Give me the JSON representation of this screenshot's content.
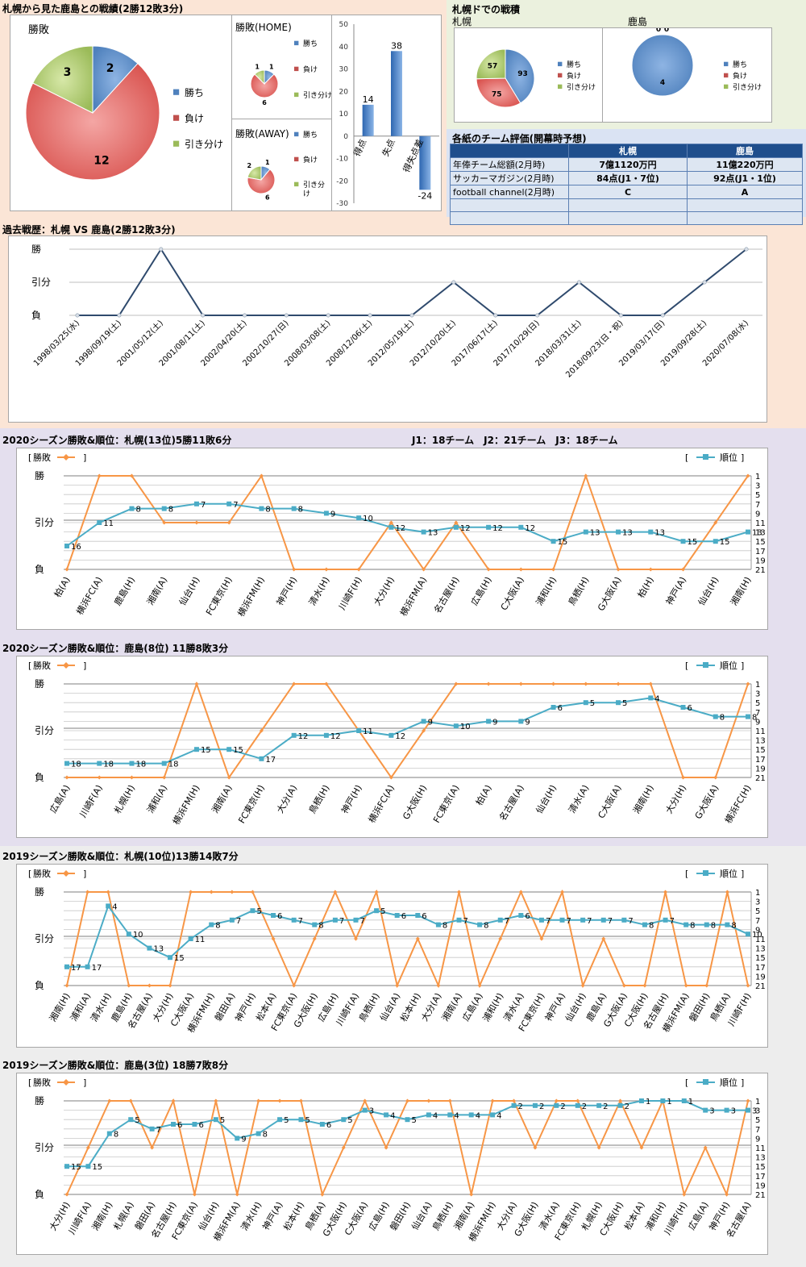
{
  "colors": {
    "rank": "#4bacc6",
    "result": "#f79646",
    "win": "#4f81bd",
    "loss": "#c0504d",
    "draw": "#9bbb59",
    "line": "#2f4a6d"
  },
  "s1": {
    "title": "札幌から見た鹿島との戦績(2勝12敗3分)",
    "pie": {
      "title": "勝敗",
      "slices": [
        {
          "label": "勝ち",
          "value": 2
        },
        {
          "label": "負け",
          "value": 12
        },
        {
          "label": "引き分け",
          "value": 3
        }
      ]
    },
    "home": {
      "title": "勝敗(HOME)",
      "slices": [
        {
          "label": "勝ち",
          "value": 1
        },
        {
          "label": "負け",
          "value": 6
        },
        {
          "label": "引き分け",
          "value": 1
        }
      ]
    },
    "away": {
      "title": "勝敗(AWAY)",
      "slices": [
        {
          "label": "勝ち",
          "value": 1
        },
        {
          "label": "負け",
          "value": 6
        },
        {
          "label": "引き分け",
          "value": 2
        }
      ]
    },
    "legend_away_draw": [
      "引き分",
      "け"
    ],
    "goals": {
      "categories": [
        "得点",
        "失点",
        "得失点差"
      ],
      "values": [
        14,
        38,
        -24
      ],
      "yticks": [
        50,
        40,
        30,
        20,
        10,
        0,
        -10,
        -20,
        -30
      ],
      "ylim": [
        -30,
        50
      ]
    }
  },
  "s2": {
    "title": "札幌ドでの戦積",
    "left": {
      "label": "札幌",
      "slices": [
        {
          "label": "勝ち",
          "value": 93
        },
        {
          "label": "負け",
          "value": 75
        },
        {
          "label": "引き分け",
          "value": 57
        }
      ]
    },
    "right": {
      "label": "鹿島",
      "slices": [
        {
          "label": "勝ち",
          "value": 4
        },
        {
          "label": "負け",
          "value": 0
        },
        {
          "label": "引き分け",
          "value": 0
        }
      ]
    }
  },
  "eval": {
    "title": "各紙のチーム評価(開幕時予想)",
    "headers": [
      "",
      "札幌",
      "鹿島"
    ],
    "rows": [
      [
        "年俸チーム総額(2月時)",
        "7億1120万円",
        "11億220万円"
      ],
      [
        "サッカーマガジン(2月時)",
        "84点(J1・7位)",
        "92点(J1・1位)"
      ],
      [
        "football channel(2月時)",
        "C",
        "A"
      ],
      [
        "",
        "",
        ""
      ],
      [
        "",
        "",
        ""
      ]
    ]
  },
  "history": {
    "title": "過去戦歴：札幌 VS 鹿島(2勝12敗3分)",
    "ylabels": [
      "勝",
      "引分",
      "負"
    ],
    "dates": [
      "1998/03/25(水)",
      "1998/09/19(土)",
      "2001/05/12(土)",
      "2001/08/11(土)",
      "2002/04/20(土)",
      "2002/10/27(日)",
      "2008/03/08(土)",
      "2008/12/06(土)",
      "2012/05/19(土)",
      "2012/10/20(土)",
      "2017/06/17(土)",
      "2017/10/29(日)",
      "2018/03/31(土)",
      "2018/09/23(日・祝)",
      "2019/03/17(日)",
      "2019/09/28(土)",
      "2020/07/08(水)"
    ],
    "results": [
      "L",
      "L",
      "W",
      "L",
      "L",
      "L",
      "L",
      "L",
      "L",
      "D",
      "L",
      "L",
      "D",
      "L",
      "L",
      "D",
      "W"
    ]
  },
  "league_note": "J1：18チーム　J2：21チーム　J3：18チーム",
  "legend": {
    "result": "勝敗",
    "rank": "順位"
  },
  "ylabels": [
    "勝",
    "引分",
    "負"
  ],
  "rank_ticks": [
    "1",
    "3",
    "5",
    "7",
    "9",
    "11",
    "13",
    "15",
    "17",
    "19",
    "21"
  ],
  "charts": [
    {
      "title": "2020シーズン勝敗&順位：札幌(13位)5勝11敗6分",
      "matches": [
        "柏(A)",
        "横浜FC(A)",
        "鹿島(H)",
        "湘南(A)",
        "仙台(H)",
        "FC東京(H)",
        "横浜FM(H)",
        "神戸(H)",
        "清水(H)",
        "川崎F(H)",
        "大分(H)",
        "横浜FM(A)",
        "名古屋(H)",
        "広島(H)",
        "C大阪(A)",
        "浦和(H)",
        "鳥栖(H)",
        "G大阪(A)",
        "柏(H)",
        "神戸(A)",
        "仙台(H)",
        "湘南(H)"
      ],
      "results": [
        "L",
        "W",
        "W",
        "D",
        "D",
        "D",
        "W",
        "L",
        "L",
        "L",
        "D",
        "L",
        "D",
        "L",
        "L",
        "L",
        "W",
        "L",
        "L",
        "L",
        "D",
        "W"
      ],
      "ranks": [
        16,
        11,
        8,
        8,
        7,
        7,
        8,
        8,
        9,
        10,
        12,
        13,
        12,
        12,
        12,
        15,
        13,
        13,
        13,
        15,
        15,
        13
      ]
    },
    {
      "title": "2020シーズン勝敗&順位：鹿島(8位) 11勝8敗3分",
      "matches": [
        "広島(A)",
        "川崎F(A)",
        "札幌(H)",
        "浦和(A)",
        "横浜FM(H)",
        "湘南(A)",
        "FC東京(H)",
        "大分(A)",
        "鳥栖(H)",
        "神戸(H)",
        "横浜FC(A)",
        "G大阪(H)",
        "FC東京(A)",
        "柏(A)",
        "名古屋(A)",
        "仙台(H)",
        "清水(A)",
        "C大阪(A)",
        "湘南(H)",
        "大分(H)",
        "G大阪(A)",
        "横浜FC(H)"
      ],
      "results": [
        "L",
        "L",
        "L",
        "L",
        "W",
        "L",
        "D",
        "W",
        "W",
        "D",
        "L",
        "D",
        "W",
        "W",
        "W",
        "W",
        "W",
        "W",
        "W",
        "L",
        "L",
        "W"
      ],
      "ranks": [
        18,
        18,
        18,
        18,
        15,
        15,
        17,
        12,
        12,
        11,
        12,
        9,
        10,
        9,
        9,
        6,
        5,
        5,
        4,
        6,
        8,
        8
      ]
    },
    {
      "title": "2019シーズン勝敗&順位：札幌(10位)13勝14敗7分",
      "matches": [
        "湘南(H)",
        "浦和(A)",
        "清水(H)",
        "鹿島(H)",
        "名古屋(A)",
        "大分(H)",
        "C大阪(A)",
        "横浜FM(H)",
        "磐田(A)",
        "神戸(H)",
        "松本(A)",
        "FC東京(A)",
        "G大阪(H)",
        "広島(H)",
        "川崎F(A)",
        "鳥栖(H)",
        "仙台(A)",
        "松本(H)",
        "大分(A)",
        "湘南(A)",
        "広島(A)",
        "浦和(H)",
        "清水(A)",
        "FC東京(H)",
        "神戸(A)",
        "仙台(H)",
        "鹿島(A)",
        "G大阪(A)",
        "C大阪(H)",
        "名古屋(H)",
        "横浜FM(A)",
        "磐田(H)",
        "鳥栖(A)",
        "川崎F(H)"
      ],
      "results": [
        "L",
        "W",
        "W",
        "L",
        "L",
        "L",
        "W",
        "W",
        "W",
        "W",
        "D",
        "L",
        "D",
        "W",
        "D",
        "W",
        "L",
        "D",
        "L",
        "W",
        "L",
        "D",
        "W",
        "D",
        "W",
        "L",
        "D",
        "L",
        "L",
        "W",
        "L",
        "L",
        "W",
        "L"
      ],
      "ranks": [
        17,
        17,
        4,
        10,
        13,
        15,
        11,
        8,
        7,
        5,
        6,
        7,
        8,
        7,
        7,
        5,
        6,
        6,
        8,
        7,
        8,
        7,
        6,
        7,
        7,
        7,
        7,
        7,
        8,
        7,
        8,
        8,
        8,
        10
      ]
    },
    {
      "title": "2019シーズン勝敗&順位：鹿島(3位) 18勝7敗8分",
      "matches": [
        "大分(H)",
        "川崎F(A)",
        "湘南(H)",
        "札幌(A)",
        "磐田(A)",
        "名古屋(H)",
        "FC東京(A)",
        "仙台(H)",
        "横浜FM(A)",
        "清水(H)",
        "神戸(A)",
        "松本(H)",
        "鳥栖(A)",
        "G大阪(H)",
        "C大阪(A)",
        "広島(H)",
        "磐田(H)",
        "仙台(A)",
        "鳥栖(H)",
        "湘南(A)",
        "横浜FM(H)",
        "大分(A)",
        "G大阪(H)",
        "清水(A)",
        "FC東京(H)",
        "札幌(H)",
        "C大阪(H)",
        "松本(A)",
        "浦和(H)",
        "川崎F(H)",
        "広島(A)",
        "神戸(H)",
        "名古屋(A)"
      ],
      "results": [
        "L",
        "D",
        "W",
        "W",
        "D",
        "W",
        "L",
        "W",
        "L",
        "W",
        "W",
        "W",
        "L",
        "D",
        "W",
        "D",
        "W",
        "W",
        "W",
        "L",
        "W",
        "W",
        "D",
        "W",
        "W",
        "D",
        "W",
        "D",
        "W",
        "L",
        "D",
        "L",
        "W"
      ],
      "ranks": [
        15,
        15,
        8,
        5,
        7,
        6,
        6,
        5,
        9,
        8,
        5,
        5,
        6,
        5,
        3,
        4,
        5,
        4,
        4,
        4,
        4,
        2,
        2,
        2,
        2,
        2,
        2,
        1,
        1,
        1,
        3,
        3,
        3
      ]
    }
  ]
}
